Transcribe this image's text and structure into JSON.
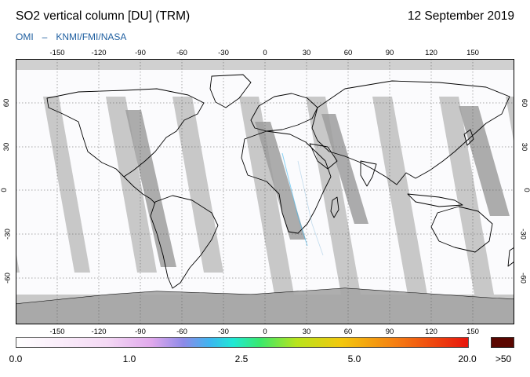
{
  "header": {
    "title": "SO2 vertical column [DU] (TRM)",
    "date": "12 September 2019",
    "credits": [
      "OMI",
      "–",
      "KNMI/FMI/NASA"
    ]
  },
  "map": {
    "projection": "equirectangular",
    "longitude_ticks": [
      "-150",
      "-120",
      "-90",
      "-60",
      "-30",
      "0",
      "30",
      "60",
      "90",
      "120",
      "150"
    ],
    "latitude_ticks": [
      "60",
      "30",
      "0",
      "-30",
      "-60"
    ],
    "colors": {
      "missing_data": "#c8c8c8",
      "orbit_gap": "#9e9e9e",
      "land": "#a5a5a5",
      "coastline": "#000000"
    }
  },
  "colorbar": {
    "labels": [
      "0.0",
      "1.0",
      "2.5",
      "5.0",
      "20.0",
      ">50"
    ],
    "overflow_color": "#5a0600"
  }
}
